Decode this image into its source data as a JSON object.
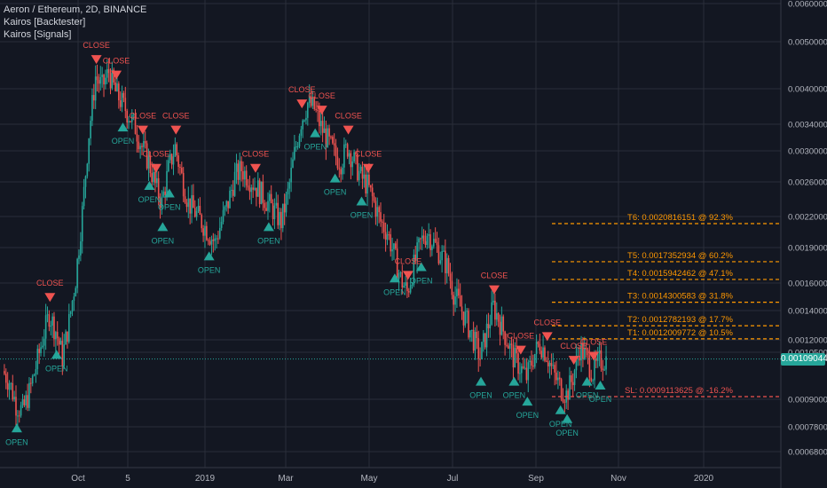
{
  "legend": {
    "symbol_line": "Aeron / Ethereum, 2D, BINANCE",
    "indicator_1": "Kairos [Backtester]",
    "indicator_2": "Kairos [Signals]"
  },
  "colors": {
    "background": "#131722",
    "grid": "#2a2e39",
    "up": "#26a69a",
    "down": "#ef5350",
    "target": "#ff9800",
    "stop": "#ef5350",
    "open_marker": "#26a69a",
    "close_marker": "#ef5350",
    "axis_text": "#b2b5be"
  },
  "last_price_label": "0.00109044",
  "chart_data": {
    "type": "candlestick",
    "title": "Aeron / Ethereum, 2D, BINANCE",
    "x_ticks": [
      "Oct",
      "5",
      "2019",
      "Mar",
      "May",
      "Jul",
      "Sep",
      "Nov",
      "2020"
    ],
    "y_ticks": [
      "0.00600000",
      "0.00500000",
      "0.00400000",
      "0.00340000",
      "0.00300000",
      "0.00260000",
      "0.00220000",
      "0.00190000",
      "0.00160000",
      "0.00140000",
      "0.00120000",
      "0.00105000",
      "0.00090000",
      "0.00078000",
      "0.00068000"
    ],
    "y_scale": "log",
    "close_path": [
      0.00103,
      0.00098,
      0.00088,
      0.00085,
      0.00093,
      0.00105,
      0.0012,
      0.00135,
      0.00125,
      0.0011,
      0.0013,
      0.0016,
      0.0022,
      0.0032,
      0.0042,
      0.004,
      0.0043,
      0.0039,
      0.0037,
      0.0035,
      0.0033,
      0.003,
      0.0028,
      0.0025,
      0.0023,
      0.0027,
      0.003,
      0.0026,
      0.0023,
      0.0022,
      0.0021,
      0.002,
      0.0019,
      0.0021,
      0.0023,
      0.0026,
      0.0027,
      0.0026,
      0.0025,
      0.0024,
      0.0023,
      0.0022,
      0.0021,
      0.0024,
      0.0029,
      0.0034,
      0.0037,
      0.0036,
      0.0033,
      0.0031,
      0.0029,
      0.0028,
      0.003,
      0.0028,
      0.0026,
      0.0025,
      0.0023,
      0.0021,
      0.002,
      0.0018,
      0.0016,
      0.0015,
      0.0017,
      0.0019,
      0.002,
      0.0019,
      0.0018,
      0.0017,
      0.0015,
      0.0014,
      0.0013,
      0.0012,
      0.0011,
      0.00125,
      0.0014,
      0.0013,
      0.0012,
      0.0011,
      0.00105,
      0.001,
      0.0011,
      0.00118,
      0.00112,
      0.00102,
      0.00096,
      0.00092,
      0.001,
      0.00115,
      0.0011,
      0.00102,
      0.00108,
      0.00109044
    ],
    "open_signals": [
      {
        "label": "OPEN",
        "index": 2
      },
      {
        "label": "OPEN",
        "index": 8
      },
      {
        "label": "OPEN",
        "index": 18
      },
      {
        "label": "OPEN",
        "index": 22
      },
      {
        "label": "OPEN",
        "index": 24
      },
      {
        "label": "OPEN",
        "index": 25
      },
      {
        "label": "OPEN",
        "index": 31
      },
      {
        "label": "OPEN",
        "index": 40
      },
      {
        "label": "OPEN",
        "index": 47
      },
      {
        "label": "OPEN",
        "index": 50
      },
      {
        "label": "OPEN",
        "index": 54
      },
      {
        "label": "OPEN",
        "index": 59
      },
      {
        "label": "OPEN",
        "index": 63
      },
      {
        "label": "OPEN",
        "index": 72
      },
      {
        "label": "OPEN",
        "index": 77
      },
      {
        "label": "OPEN",
        "index": 79
      },
      {
        "label": "OPEN",
        "index": 84
      },
      {
        "label": "OPEN",
        "index": 85
      },
      {
        "label": "OPEN",
        "index": 88
      },
      {
        "label": "OPEN",
        "index": 90
      }
    ],
    "close_signals": [
      {
        "label": "CLOSE",
        "index": 7
      },
      {
        "label": "CLOSE",
        "index": 14
      },
      {
        "label": "CLOSE",
        "index": 17
      },
      {
        "label": "CLOSE",
        "index": 21
      },
      {
        "label": "CLOSE",
        "index": 23
      },
      {
        "label": "CLOSE",
        "index": 26
      },
      {
        "label": "CLOSE",
        "index": 38
      },
      {
        "label": "CLOSE",
        "index": 45
      },
      {
        "label": "CLOSE",
        "index": 48
      },
      {
        "label": "CLOSE",
        "index": 52
      },
      {
        "label": "CLOSE",
        "index": 55
      },
      {
        "label": "CLOSE",
        "index": 61
      },
      {
        "label": "CLOSE",
        "index": 74
      },
      {
        "label": "CLOSE",
        "index": 78
      },
      {
        "label": "CLOSE",
        "index": 82
      },
      {
        "label": "CLOSE",
        "index": 86
      },
      {
        "label": "CLOSE",
        "index": 89
      }
    ],
    "levels": [
      {
        "name": "T6",
        "text": "T6: 0.0020816151 @ 92.3%",
        "value": 0.0020816151
      },
      {
        "name": "T5",
        "text": "T5: 0.0017352934 @ 60.2%",
        "value": 0.0017352934
      },
      {
        "name": "T4",
        "text": "T4: 0.0015942462 @ 47.1%",
        "value": 0.0015942462
      },
      {
        "name": "T3",
        "text": "T3: 0.0014300583 @ 31.8%",
        "value": 0.0014300583
      },
      {
        "name": "T2",
        "text": "T2: 0.0012782193 @ 17.7%",
        "value": 0.0012782193
      },
      {
        "name": "T1",
        "text": "T1: 0.0012009772 @ 10.5%",
        "value": 0.0012009772
      },
      {
        "name": "SL",
        "text": "SL: 0.0009113625 @ -16.2%",
        "value": 0.0009113625
      }
    ]
  }
}
